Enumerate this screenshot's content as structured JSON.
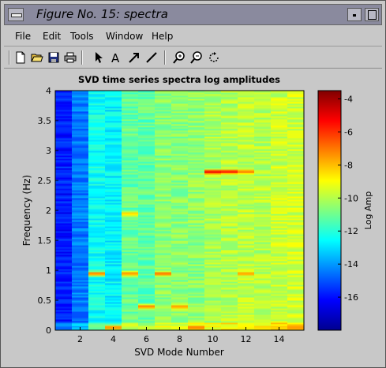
{
  "window": {
    "title": "Figure No. 15: spectra"
  },
  "menu": [
    "File",
    "Edit",
    "Tools",
    "Window",
    "Help"
  ],
  "toolbar": {
    "icons": [
      "new-file-icon",
      "open-folder-icon",
      "save-icon",
      "print-icon",
      "select-arrow-icon",
      "insert-text-icon",
      "insert-arrow-icon",
      "insert-line-icon",
      "zoom-in-icon",
      "zoom-out-icon",
      "rotate-icon"
    ]
  },
  "chart_data": {
    "type": "heatmap",
    "title": "SVD time series spectra log amplitudes",
    "xlabel": "SVD Mode Number",
    "ylabel": "Frequency (Hz)",
    "x_ticks": [
      "2",
      "4",
      "6",
      "8",
      "10",
      "12",
      "14"
    ],
    "y_ticks": [
      "0",
      "0.5",
      "1",
      "1.5",
      "2",
      "2.5",
      "3",
      "3.5",
      "4"
    ],
    "x_range": [
      0.5,
      15.5
    ],
    "y_range": [
      0,
      4
    ],
    "colormap": "jet",
    "colorbar": {
      "label": "Log Amp",
      "ticks": [
        "-4",
        "-6",
        "-8",
        "-10",
        "-12",
        "-14",
        "-16"
      ],
      "range": [
        -18,
        -3.5
      ]
    },
    "mode_base_log_amp": [
      -15.8,
      -14.5,
      -12.4,
      -12.7,
      -11.1,
      -11.2,
      -10.6,
      -10.6,
      -10.5,
      -10.2,
      -10.0,
      -9.9,
      -10.0,
      -9.7,
      -9.6
    ],
    "features": [
      {
        "mode": 3,
        "freq": 0.95,
        "log_amp": -6.8
      },
      {
        "mode": 5,
        "freq": 0.95,
        "log_amp": -7.2
      },
      {
        "mode": 7,
        "freq": 0.95,
        "log_amp": -6.8
      },
      {
        "mode": 12,
        "freq": 0.95,
        "log_amp": -7.6
      },
      {
        "mode": 5,
        "freq": 1.95,
        "log_amp": -8.2
      },
      {
        "mode": 10,
        "freq": 2.65,
        "log_amp": -5.0
      },
      {
        "mode": 11,
        "freq": 2.65,
        "log_amp": -5.5
      },
      {
        "mode": 12,
        "freq": 2.65,
        "log_amp": -7.0
      },
      {
        "mode": 6,
        "freq": 0.4,
        "log_amp": -7.0
      },
      {
        "mode": 8,
        "freq": 0.4,
        "log_amp": -7.5
      },
      {
        "mode": 4,
        "freq": 0.05,
        "log_amp": -7.0
      },
      {
        "mode": 9,
        "freq": 0.05,
        "log_amp": -7.0
      },
      {
        "mode": 15,
        "freq": 0.05,
        "log_amp": -7.5
      }
    ]
  }
}
